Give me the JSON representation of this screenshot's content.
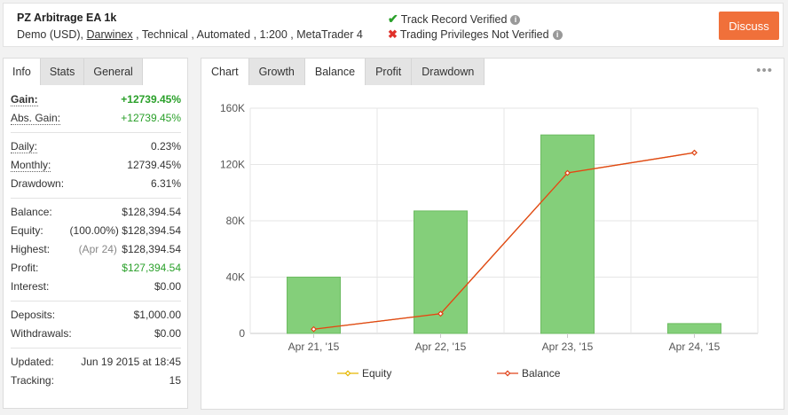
{
  "header": {
    "title": "PZ Arbitrage EA 1k",
    "info_prefix": "Demo (USD),",
    "broker": "Darwinex",
    "info_suffix": ", Technical , Automated , 1:200 , MetaTrader 4",
    "track_record": "Track Record Verified",
    "trading_privileges": "Trading Privileges Not Verified",
    "discuss_label": "Discuss"
  },
  "left_tabs": [
    "Info",
    "Stats",
    "General"
  ],
  "stats": {
    "gain_label": "Gain:",
    "gain_value": "+12739.45%",
    "abs_gain_label": "Abs. Gain:",
    "abs_gain_value": "+12739.45%",
    "daily_label": "Daily:",
    "daily_value": "0.23%",
    "monthly_label": "Monthly:",
    "monthly_value": "12739.45%",
    "drawdown_label": "Drawdown:",
    "drawdown_value": "6.31%",
    "balance_label": "Balance:",
    "balance_value": "$128,394.54",
    "equity_label": "Equity:",
    "equity_sub": "(100.00%)",
    "equity_value": "$128,394.54",
    "highest_label": "Highest:",
    "highest_sub": "(Apr 24)",
    "highest_value": "$128,394.54",
    "profit_label": "Profit:",
    "profit_value": "$127,394.54",
    "interest_label": "Interest:",
    "interest_value": "$0.00",
    "deposits_label": "Deposits:",
    "deposits_value": "$1,000.00",
    "withdrawals_label": "Withdrawals:",
    "withdrawals_value": "$0.00",
    "updated_label": "Updated:",
    "updated_value": "Jun 19 2015 at 18:45",
    "tracking_label": "Tracking:",
    "tracking_value": "15"
  },
  "right_tabs": [
    "Chart",
    "Growth",
    "Balance",
    "Profit",
    "Drawdown"
  ],
  "menu_icon": "more-dots-icon",
  "colors": {
    "accent": "#f0703a",
    "green": "#2aa02a",
    "bar": "#84cf7a",
    "bar_stroke": "#6dbb62",
    "balance_line": "#e0441b",
    "equity_line": "#e6b800"
  },
  "chart_data": {
    "type": "bar",
    "categories": [
      "Apr 21, '15",
      "Apr 22, '15",
      "Apr 23, '15",
      "Apr 24, '15"
    ],
    "ylim": [
      0,
      160000
    ],
    "yticks": [
      0,
      40000,
      80000,
      120000,
      160000
    ],
    "ytick_labels": [
      "0",
      "40K",
      "80K",
      "120K",
      "160K"
    ],
    "series": [
      {
        "name": "Bars",
        "type": "bar",
        "values": [
          40000,
          87000,
          141000,
          7000
        ]
      },
      {
        "name": "Equity",
        "type": "line",
        "values": [
          3000,
          14000,
          114000,
          128400
        ]
      },
      {
        "name": "Balance",
        "type": "line",
        "values": [
          3000,
          14000,
          114000,
          128400
        ]
      }
    ],
    "legend": [
      "Equity",
      "Balance"
    ],
    "legend_position": "bottom",
    "grid": true
  }
}
